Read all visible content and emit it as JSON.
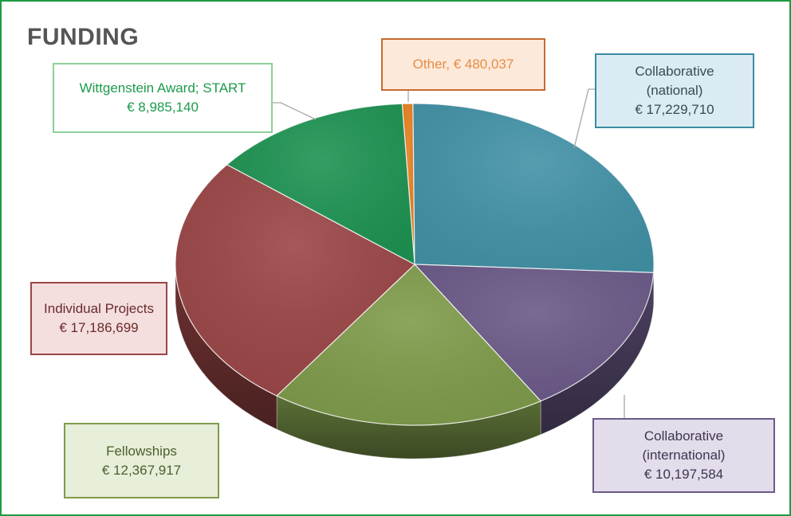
{
  "title": "FUNDING",
  "chart_data": {
    "type": "pie",
    "style": "3d",
    "legend": "none",
    "slices": [
      {
        "name": "Collaborative (national)",
        "label_lines": [
          "Collaborative",
          "(national)",
          "€ 17,229,710"
        ],
        "value": 17229710,
        "color": "#4392a7",
        "box_bg": "#daebf3",
        "box_border": "#3c8aa2",
        "text_color": "#3a4a55"
      },
      {
        "name": "Collaborative (international)",
        "label_lines": [
          "Collaborative",
          "(international)",
          "€ 10,197,584"
        ],
        "value": 10197584,
        "color": "#6b5a88",
        "box_bg": "#e3dceb",
        "box_border": "#6b5a88",
        "text_color": "#3e3650"
      },
      {
        "name": "Fellowships",
        "label_lines": [
          "Fellowships",
          "€ 12,367,917"
        ],
        "value": 12367917,
        "color": "#7f9c4b",
        "box_bg": "#e7eed9",
        "box_border": "#7f9c4b",
        "text_color": "#4c5f2c"
      },
      {
        "name": "Individual Projects",
        "label_lines": [
          "Individual Projects",
          "€ 17,186,699"
        ],
        "value": 17186699,
        "color": "#9b4646",
        "box_bg": "#f4dede",
        "box_border": "#9b4646",
        "text_color": "#6a2b2b"
      },
      {
        "name": "Wittgenstein Award; START",
        "label_lines": [
          "Wittgenstein Award; START",
          "€  8,985,140"
        ],
        "value": 8985140,
        "color": "#1e9352",
        "box_bg": "#ffffff",
        "box_border": "#8bd19b",
        "text_color": "#1d9a4c"
      },
      {
        "name": "Other",
        "label_lines": [
          "Other, € 480,037"
        ],
        "value": 480037,
        "color": "#e8801f",
        "box_bg": "#fde9da",
        "box_border": "#c86b2e",
        "text_color": "#e58c45"
      }
    ]
  }
}
